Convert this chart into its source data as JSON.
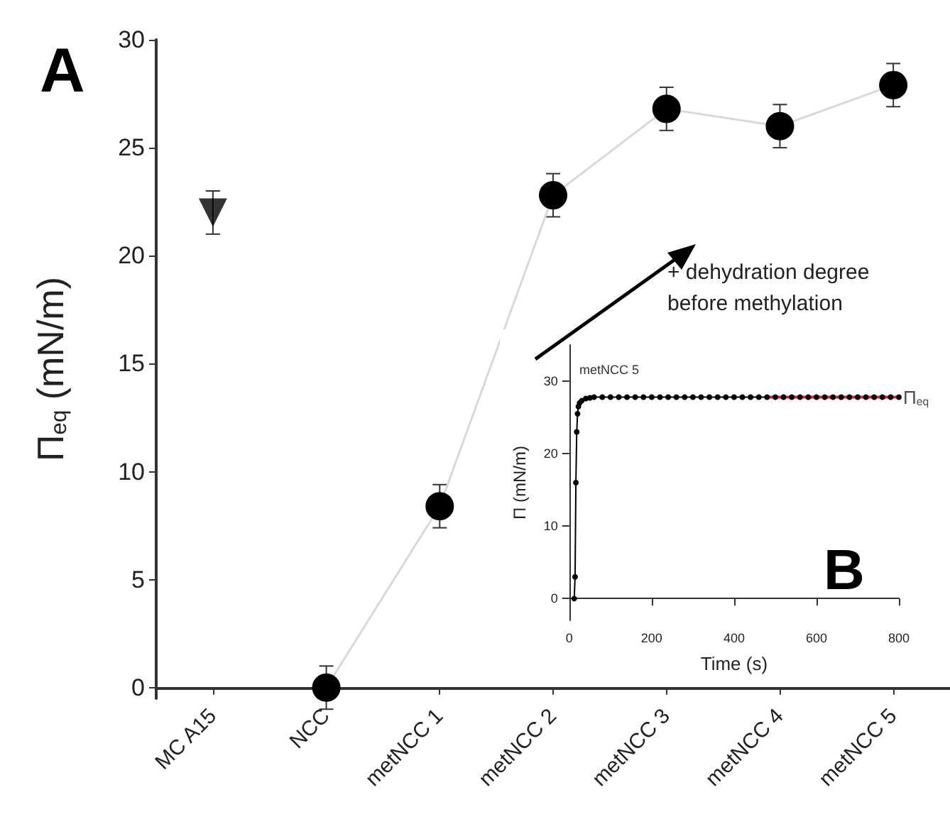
{
  "chart_data": [
    {
      "type": "line",
      "ylabel": "Π$_{eq}$ (mN/m)",
      "categories": [
        "MC A15",
        "NCC",
        "metNCC 1",
        "metNCC 2",
        "metNCC 3",
        "metNCC 4",
        "metNCC 5"
      ],
      "ylim": [
        -0.5,
        30
      ],
      "yticks": [
        0,
        5,
        10,
        15,
        20,
        25,
        30
      ],
      "grid": false,
      "series": [
        {
          "type": "scatter",
          "color": "#000000",
          "marker": "triangle",
          "values": [
            22,
            null,
            null,
            null,
            null,
            null,
            null
          ],
          "errors": [
            1,
            null,
            null,
            null,
            null,
            null,
            null
          ]
        },
        {
          "color": "#000000",
          "marker": "circle",
          "values": [
            null,
            0,
            8.4,
            22.8,
            26.8,
            26,
            27.9
          ],
          "errors": [
            null,
            1,
            1,
            1,
            1,
            1,
            1
          ]
        }
      ],
      "annotations": [
        "A",
        "+ dehydration degree\nbefore methylation"
      ]
    },
    {
      "type": "line",
      "xlabel": "Time (s)",
      "ylabel": "Π (mN/m)",
      "xlim": [
        0,
        800
      ],
      "xticks": [
        0,
        200,
        400,
        600,
        800
      ],
      "ylim": [
        -3,
        35
      ],
      "yticks": [
        0,
        10,
        20,
        30
      ],
      "grid": false,
      "series": [
        {
          "color": "#000000",
          "marker": "circle",
          "x": [
            12,
            14,
            16,
            18,
            20,
            22,
            25,
            30,
            40,
            50,
            60,
            80,
            100,
            120,
            140,
            160,
            180,
            200,
            220,
            240,
            260,
            280,
            300,
            320,
            340,
            360,
            380,
            400,
            420,
            440,
            460,
            480,
            500,
            520,
            540,
            560,
            580,
            600,
            620,
            640,
            660,
            680,
            700,
            720,
            740,
            760,
            780,
            800
          ],
          "values": [
            0,
            3,
            16,
            23,
            25.5,
            26.5,
            27,
            27.3,
            27.6,
            27.7,
            27.8,
            27.8,
            27.8,
            27.8,
            27.8,
            27.8,
            27.8,
            27.8,
            27.8,
            27.8,
            27.8,
            27.8,
            27.8,
            27.8,
            27.8,
            27.8,
            27.8,
            27.8,
            27.8,
            27.8,
            27.8,
            27.8,
            27.8,
            27.8,
            27.8,
            27.8,
            27.8,
            27.8,
            27.8,
            27.8,
            27.8,
            27.8,
            27.8,
            27.8,
            27.8,
            27.8,
            27.8,
            27.8
          ]
        },
        {
          "color": "#e8202a",
          "marker": "none",
          "x": [
            480,
            800
          ],
          "values": [
            27.8,
            27.8
          ]
        }
      ],
      "annotations": [
        "metNCC 5",
        "B",
        {
          "text": "Π$_{eq}$",
          "x": 800,
          "y": 27.8
        }
      ]
    }
  ]
}
